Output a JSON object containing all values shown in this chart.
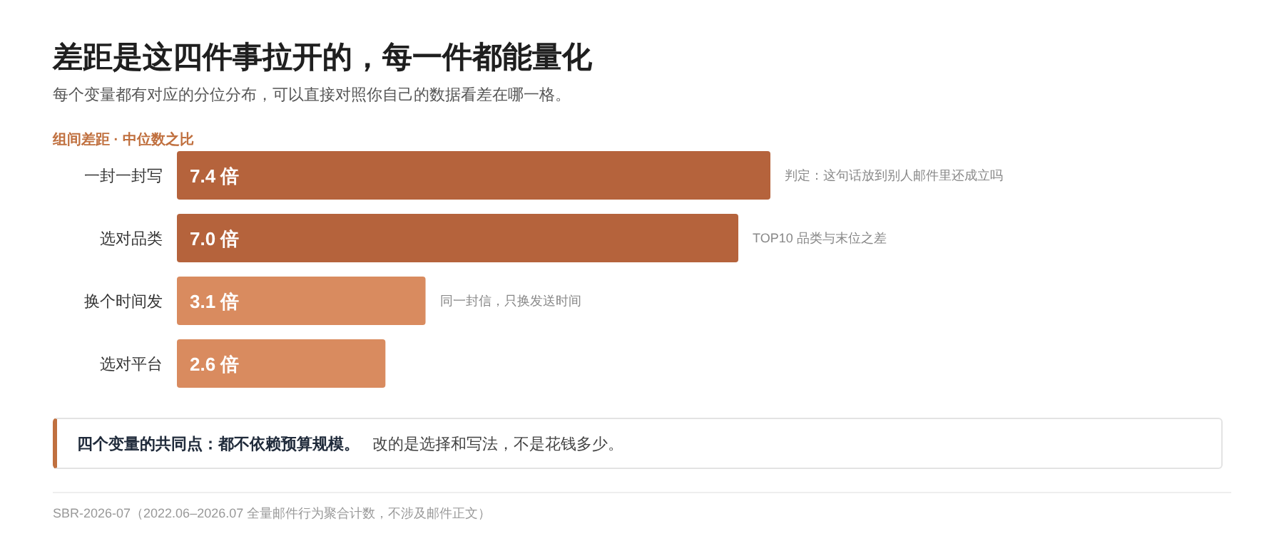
{
  "chart_data": {
    "type": "bar",
    "orientation": "horizontal",
    "title": "差距是这四件事拉开的，每一件都能量化",
    "subtitle": "每个变量都有对应的分位分布，可以直接对照你自己的数据看差在哪一格。",
    "categories": [
      "一封一封写",
      "选对品类",
      "换个时间发",
      "选对平台"
    ],
    "values": [
      7.4,
      7.0,
      3.1,
      2.6
    ],
    "colors": [
      "#b5633c",
      "#b5633c",
      "#d98b5f",
      "#d98b5f"
    ],
    "value_labels": [
      "7.4 倍",
      "7.0 倍",
      "3.1 倍",
      "2.6 倍"
    ],
    "annotations": [
      "组间差距 · 中位数之比",
      {
        "text": "判定：这句话放到别人邮件里还成立吗",
        "x": 7.4,
        "y": "一封一封写"
      },
      {
        "text": "TOP10 品类与末位之差",
        "x": 7.0,
        "y": "选对品类"
      },
      {
        "text": "同一封信，只换发送时间",
        "x": 3.1,
        "y": "换个时间发"
      },
      "四个变量的共同点：都不依赖预算规模。",
      "改的是选择和写法，不是花钱多少。",
      "SBR-2026-07（2022.06–2026.07 全量邮件行为聚合计数，不涉及邮件正文）"
    ]
  }
}
